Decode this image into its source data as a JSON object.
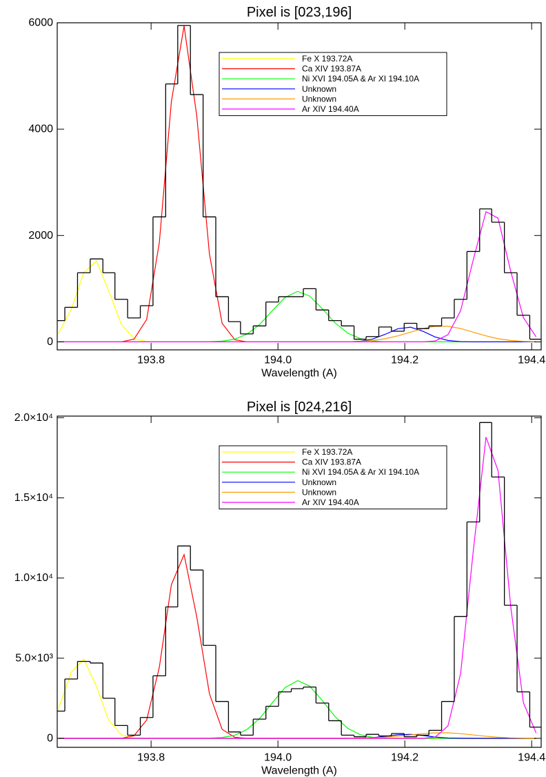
{
  "chart_data": [
    {
      "type": "histogram",
      "title": "Pixel is [023,196]",
      "xlabel": "Wavelength (A)",
      "xlim": [
        193.652,
        194.415
      ],
      "xticks": [
        193.8,
        {
          "value": 194,
          "label": "194.0"
        },
        194.2,
        194.4
      ],
      "ylim": [
        -150,
        6000
      ],
      "yticks": [
        0,
        2000,
        4000,
        6000
      ],
      "legend": "upper-right",
      "color": "#000000",
      "bins": [
        193.644,
        193.664,
        193.684,
        193.704,
        193.724,
        193.743,
        193.763,
        193.783,
        193.803,
        193.823,
        193.842,
        193.862,
        193.882,
        193.902,
        193.922,
        193.941,
        193.961,
        193.981,
        194.001,
        194.021,
        194.04,
        194.06,
        194.08,
        194.1,
        194.12,
        194.139,
        194.159,
        194.179,
        194.199,
        194.219,
        194.238,
        194.258,
        194.278,
        194.298,
        194.318,
        194.337,
        194.357,
        194.377,
        194.397,
        194.417
      ],
      "values": [
        400,
        650,
        1300,
        1560,
        1300,
        800,
        450,
        680,
        2350,
        4850,
        5950,
        4650,
        2350,
        850,
        380,
        150,
        300,
        750,
        850,
        850,
        1000,
        600,
        400,
        300,
        50,
        100,
        280,
        200,
        350,
        250,
        300,
        450,
        800,
        1700,
        2500,
        2250,
        1300,
        500,
        50
      ],
      "x": [
        193.654,
        193.674,
        193.694,
        193.714,
        193.733,
        193.753,
        193.773,
        193.793,
        193.813,
        193.832,
        193.852,
        193.872,
        193.892,
        193.912,
        193.932,
        193.951,
        193.971,
        193.991,
        194.011,
        194.031,
        194.05,
        194.07,
        194.09,
        194.11,
        194.13,
        194.149,
        194.169,
        194.189,
        194.209,
        194.229,
        194.248,
        194.268,
        194.288,
        194.308,
        194.328,
        194.347,
        194.367,
        194.387,
        194.407
      ],
      "series": [
        {
          "name": "Fe X 193.72A",
          "color": "#ffff00",
          "values": [
            160,
            611,
            1306,
            1521,
            963,
            332,
            62,
            6,
            0,
            0,
            0,
            0,
            0,
            0,
            0,
            0,
            0,
            0,
            0,
            0,
            0,
            0,
            0,
            0,
            0,
            0,
            0,
            0,
            0,
            0,
            0,
            0,
            0,
            0,
            0,
            0,
            0,
            0,
            0
          ]
        },
        {
          "name": "Ca XIV 193.87A",
          "color": "#ff0000",
          "values": [
            0,
            0,
            0,
            0,
            0,
            0,
            51,
            420,
            1870,
            4520,
            5940,
            4250,
            1650,
            350,
            40,
            0,
            0,
            0,
            0,
            0,
            0,
            0,
            0,
            0,
            0,
            0,
            0,
            0,
            0,
            0,
            0,
            0,
            0,
            0,
            0,
            0,
            0,
            0,
            0
          ]
        },
        {
          "name": "Ni XVI 194.05A & Ar XI 194.10A",
          "color": "#00ff00",
          "values": [
            0,
            0,
            0,
            0,
            0,
            0,
            0,
            0,
            0,
            0,
            0,
            0,
            3,
            14,
            51,
            145,
            326,
            584,
            834,
            950,
            861,
            622,
            358,
            165,
            60,
            17,
            0,
            0,
            0,
            0,
            0,
            0,
            0,
            0,
            0,
            0,
            0,
            0,
            0
          ]
        },
        {
          "name": "Unknown",
          "color": "#0000ff",
          "values": [
            0,
            0,
            0,
            0,
            0,
            0,
            0,
            0,
            0,
            0,
            0,
            0,
            0,
            0,
            0,
            0,
            0,
            0,
            0,
            0,
            0,
            0,
            0,
            0,
            12,
            52,
            142,
            247,
            276,
            198,
            91,
            27,
            5,
            0,
            0,
            0,
            0,
            0,
            0
          ]
        },
        {
          "name": "Unknown",
          "color": "#ff9900",
          "values": [
            0,
            0,
            0,
            0,
            0,
            0,
            0,
            0,
            0,
            0,
            0,
            0,
            0,
            0,
            0,
            0,
            0,
            0,
            0,
            0,
            0,
            0,
            0,
            3,
            10,
            27,
            59,
            113,
            182,
            251,
            294,
            294,
            251,
            182,
            113,
            59,
            27,
            10,
            3
          ]
        },
        {
          "name": "Ar XIV 194.40A",
          "color": "#ff00ff",
          "values": [
            0,
            0,
            0,
            0,
            0,
            0,
            0,
            0,
            0,
            0,
            0,
            0,
            0,
            0,
            0,
            0,
            0,
            0,
            0,
            0,
            0,
            0,
            0,
            0,
            0,
            0,
            0,
            0,
            0,
            0,
            18,
            134,
            587,
            1547,
            2448,
            2326,
            1327,
            455,
            94
          ]
        }
      ]
    },
    {
      "type": "histogram",
      "title": "Pixel is [024,216]",
      "xlabel": "Wavelength (A)",
      "xlim": [
        193.652,
        194.415
      ],
      "xticks": [
        193.8,
        {
          "value": 194,
          "label": "194.0"
        },
        194.2,
        194.4
      ],
      "ylim": [
        -560,
        20100
      ],
      "yticks": [
        0,
        {
          "value": 5000,
          "label": "5.0×10³"
        },
        {
          "value": 10000,
          "label": "1.0×10⁴"
        },
        {
          "value": 15000,
          "label": "1.5×10⁴"
        },
        {
          "value": 20000,
          "label": "2.0×10⁴"
        }
      ],
      "legend": "upper-right",
      "color": "#000000",
      "bins": [
        193.644,
        193.664,
        193.684,
        193.704,
        193.724,
        193.743,
        193.763,
        193.783,
        193.803,
        193.823,
        193.842,
        193.862,
        193.882,
        193.902,
        193.922,
        193.941,
        193.961,
        193.981,
        194.001,
        194.021,
        194.04,
        194.06,
        194.08,
        194.1,
        194.12,
        194.139,
        194.159,
        194.179,
        194.199,
        194.219,
        194.238,
        194.258,
        194.278,
        194.298,
        194.318,
        194.337,
        194.357,
        194.377,
        194.397,
        194.417
      ],
      "values": [
        1700,
        3700,
        4800,
        4700,
        2500,
        800,
        200,
        1300,
        3900,
        8200,
        12000,
        10500,
        5800,
        2300,
        400,
        200,
        1200,
        2000,
        2900,
        3100,
        3200,
        2200,
        1100,
        200,
        100,
        250,
        150,
        300,
        100,
        200,
        500,
        2300,
        7600,
        13500,
        19700,
        16300,
        8300,
        2900,
        700
      ],
      "x": [
        193.654,
        193.674,
        193.694,
        193.714,
        193.733,
        193.753,
        193.773,
        193.793,
        193.813,
        193.832,
        193.852,
        193.872,
        193.892,
        193.912,
        193.932,
        193.951,
        193.971,
        193.991,
        194.011,
        194.031,
        194.05,
        194.07,
        194.09,
        194.11,
        194.13,
        194.149,
        194.169,
        194.189,
        194.209,
        194.229,
        194.248,
        194.268,
        194.288,
        194.308,
        194.328,
        194.347,
        194.367,
        194.387,
        194.407
      ],
      "series": [
        {
          "name": "Fe X 193.72A",
          "color": "#ffff00",
          "values": [
            1860,
            4115,
            4940,
            3224,
            1140,
            220,
            23,
            0,
            0,
            0,
            0,
            0,
            0,
            0,
            0,
            0,
            0,
            0,
            0,
            0,
            0,
            0,
            0,
            0,
            0,
            0,
            0,
            0,
            0,
            0,
            0,
            0,
            0,
            0,
            0,
            0,
            0,
            0,
            0
          ]
        },
        {
          "name": "Ca XIV 193.87A",
          "color": "#ff0000",
          "values": [
            0,
            0,
            0,
            0,
            0,
            0,
            162,
            1140,
            4440,
            9590,
            11460,
            7580,
            2780,
            560,
            64,
            0,
            0,
            0,
            0,
            0,
            0,
            0,
            0,
            0,
            0,
            0,
            0,
            0,
            0,
            0,
            0,
            0,
            0,
            0,
            0,
            0,
            0,
            0,
            0
          ]
        },
        {
          "name": "Ni XVI 194.05A & Ar XI 194.10A",
          "color": "#00ff00",
          "values": [
            0,
            0,
            0,
            0,
            0,
            0,
            0,
            0,
            0,
            0,
            0,
            0,
            11,
            53,
            193,
            550,
            1235,
            2213,
            3161,
            3600,
            3263,
            2357,
            1357,
            625,
            227,
            64,
            0,
            0,
            0,
            0,
            0,
            0,
            0,
            0,
            0,
            0,
            0,
            0,
            0
          ]
        },
        {
          "name": "Unknown",
          "color": "#0000ff",
          "values": [
            0,
            0,
            0,
            0,
            0,
            0,
            0,
            0,
            0,
            0,
            0,
            0,
            0,
            0,
            0,
            0,
            0,
            0,
            0,
            0,
            0,
            0,
            0,
            0,
            11,
            46,
            127,
            221,
            246,
            177,
            81,
            24,
            4,
            0,
            0,
            0,
            0,
            0,
            0
          ]
        },
        {
          "name": "Unknown",
          "color": "#ff9900",
          "values": [
            0,
            0,
            0,
            0,
            0,
            0,
            0,
            0,
            0,
            0,
            0,
            0,
            0,
            0,
            0,
            0,
            0,
            0,
            0,
            0,
            0,
            0,
            0,
            4,
            12,
            31,
            69,
            132,
            212,
            293,
            343,
            343,
            293,
            212,
            132,
            69,
            31,
            12,
            4
          ]
        },
        {
          "name": "Ar XIV 194.40A",
          "color": "#ff00ff",
          "values": [
            0,
            0,
            0,
            0,
            0,
            0,
            0,
            0,
            0,
            0,
            0,
            0,
            0,
            0,
            0,
            0,
            0,
            0,
            0,
            0,
            0,
            0,
            0,
            0,
            0,
            0,
            0,
            0,
            0,
            0,
            81,
            770,
            4035,
            11710,
            18790,
            16700,
            8210,
            2220,
            336
          ]
        }
      ]
    }
  ]
}
